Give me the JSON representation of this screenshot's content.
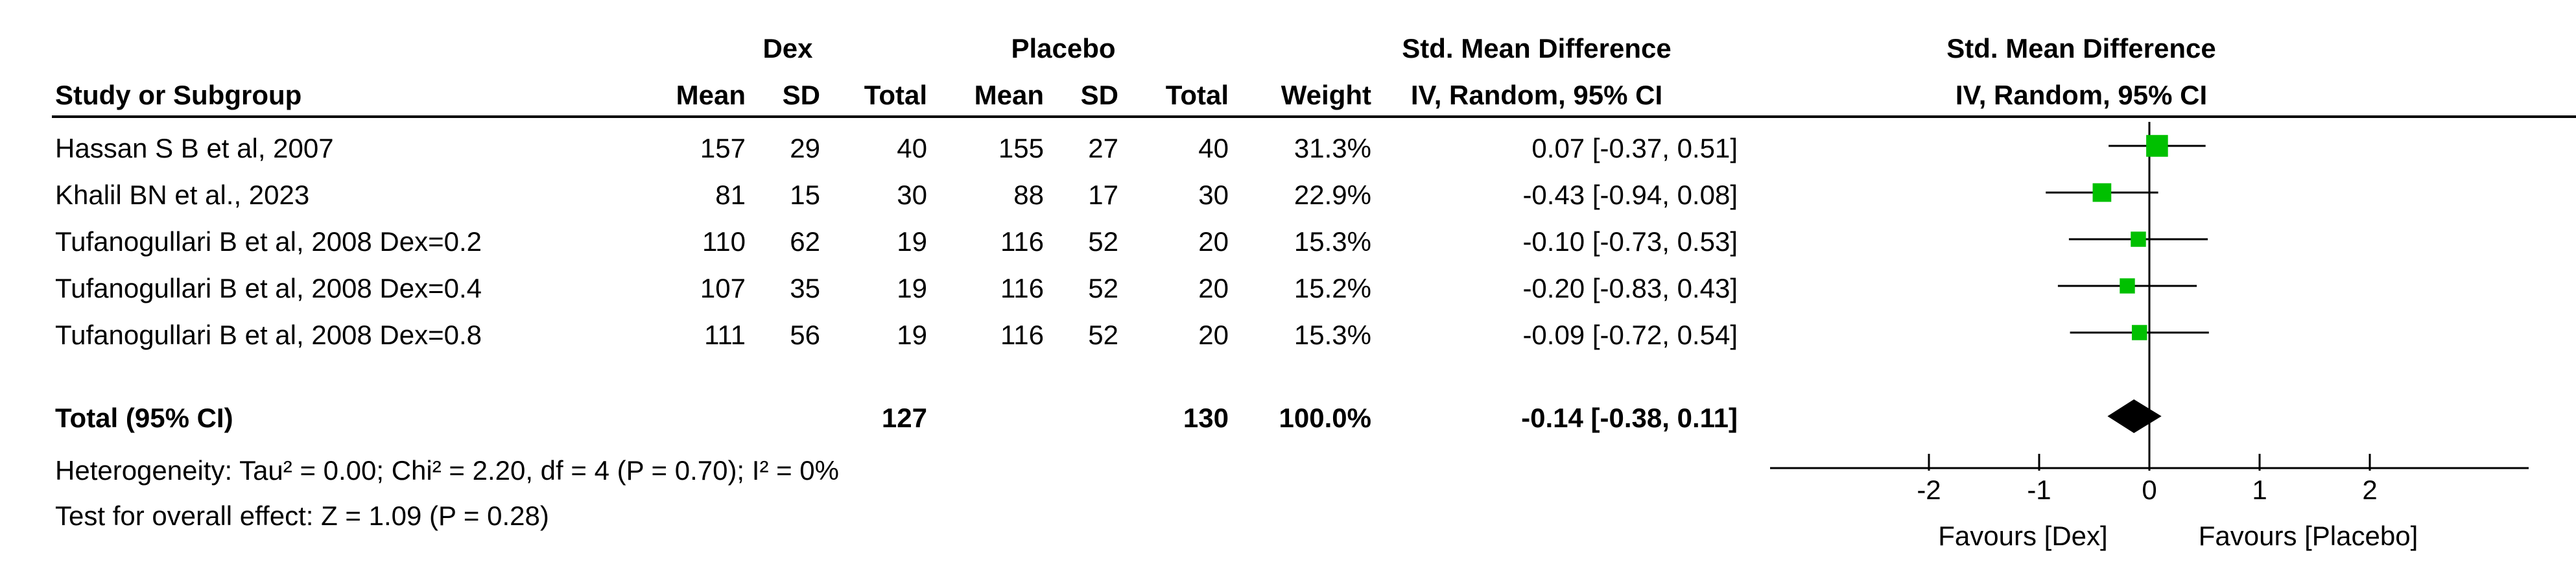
{
  "headers": {
    "group1": "Dex",
    "group2": "Placebo",
    "smd_title": "Std. Mean Difference",
    "smd_method": "IV, Random, 95% CI",
    "plot_title": "Std. Mean Difference",
    "plot_method": "IV, Random, 95% CI",
    "study": "Study or Subgroup",
    "mean": "Mean",
    "sd": "SD",
    "total": "Total",
    "weight": "Weight"
  },
  "studies": [
    {
      "name": "Hassan S B et al, 2007",
      "dex_mean": "157",
      "dex_sd": "29",
      "dex_total": "40",
      "pl_mean": "155",
      "pl_sd": "27",
      "pl_total": "40",
      "weight": "31.3%",
      "ci_text": "0.07 [-0.37, 0.51]"
    },
    {
      "name": "Khalil BN et al., 2023",
      "dex_mean": "81",
      "dex_sd": "15",
      "dex_total": "30",
      "pl_mean": "88",
      "pl_sd": "17",
      "pl_total": "30",
      "weight": "22.9%",
      "ci_text": "-0.43 [-0.94, 0.08]"
    },
    {
      "name": "Tufanogullari B et al, 2008 Dex=0.2",
      "dex_mean": "110",
      "dex_sd": "62",
      "dex_total": "19",
      "pl_mean": "116",
      "pl_sd": "52",
      "pl_total": "20",
      "weight": "15.3%",
      "ci_text": "-0.10 [-0.73, 0.53]"
    },
    {
      "name": "Tufanogullari B et al, 2008 Dex=0.4",
      "dex_mean": "107",
      "dex_sd": "35",
      "dex_total": "19",
      "pl_mean": "116",
      "pl_sd": "52",
      "pl_total": "20",
      "weight": "15.2%",
      "ci_text": "-0.20 [-0.83, 0.43]"
    },
    {
      "name": "Tufanogullari B et al, 2008 Dex=0.8",
      "dex_mean": "111",
      "dex_sd": "56",
      "dex_total": "19",
      "pl_mean": "116",
      "pl_sd": "52",
      "pl_total": "20",
      "weight": "15.3%",
      "ci_text": "-0.09 [-0.72, 0.54]"
    }
  ],
  "total": {
    "label": "Total (95% CI)",
    "dex_total": "127",
    "pl_total": "130",
    "weight": "100.0%",
    "ci_text": "-0.14 [-0.38, 0.11]"
  },
  "heterogeneity": "Heterogeneity: Tau² = 0.00; Chi² = 2.20, df = 4 (P = 0.70); I² = 0%",
  "overall_effect": "Test for overall effect: Z = 1.09 (P = 0.28)",
  "axis": {
    "favours_left": "Favours [Dex]",
    "favours_right": "Favours [Placebo]"
  },
  "colors": {
    "marker": "#00c000",
    "diamond": "#000000",
    "line": "#000000"
  },
  "chart_data": {
    "type": "forest",
    "xlim": [
      -3,
      3.5
    ],
    "xticks": [
      -2,
      -1,
      0,
      1,
      2
    ],
    "tick_labels": [
      "-2",
      "-1",
      "0",
      "1",
      "2"
    ],
    "studies": [
      {
        "name": "Hassan S B et al, 2007",
        "smd": 0.07,
        "lo": -0.37,
        "hi": 0.51,
        "weight": 31.3
      },
      {
        "name": "Khalil BN et al., 2023",
        "smd": -0.43,
        "lo": -0.94,
        "hi": 0.08,
        "weight": 22.9
      },
      {
        "name": "Tufanogullari B et al, 2008 Dex=0.2",
        "smd": -0.1,
        "lo": -0.73,
        "hi": 0.53,
        "weight": 15.3
      },
      {
        "name": "Tufanogullari B et al, 2008 Dex=0.4",
        "smd": -0.2,
        "lo": -0.83,
        "hi": 0.43,
        "weight": 15.2
      },
      {
        "name": "Tufanogullari B et al, 2008 Dex=0.8",
        "smd": -0.09,
        "lo": -0.72,
        "hi": 0.54,
        "weight": 15.3
      }
    ],
    "pooled": {
      "smd": -0.14,
      "lo": -0.38,
      "hi": 0.11
    }
  }
}
